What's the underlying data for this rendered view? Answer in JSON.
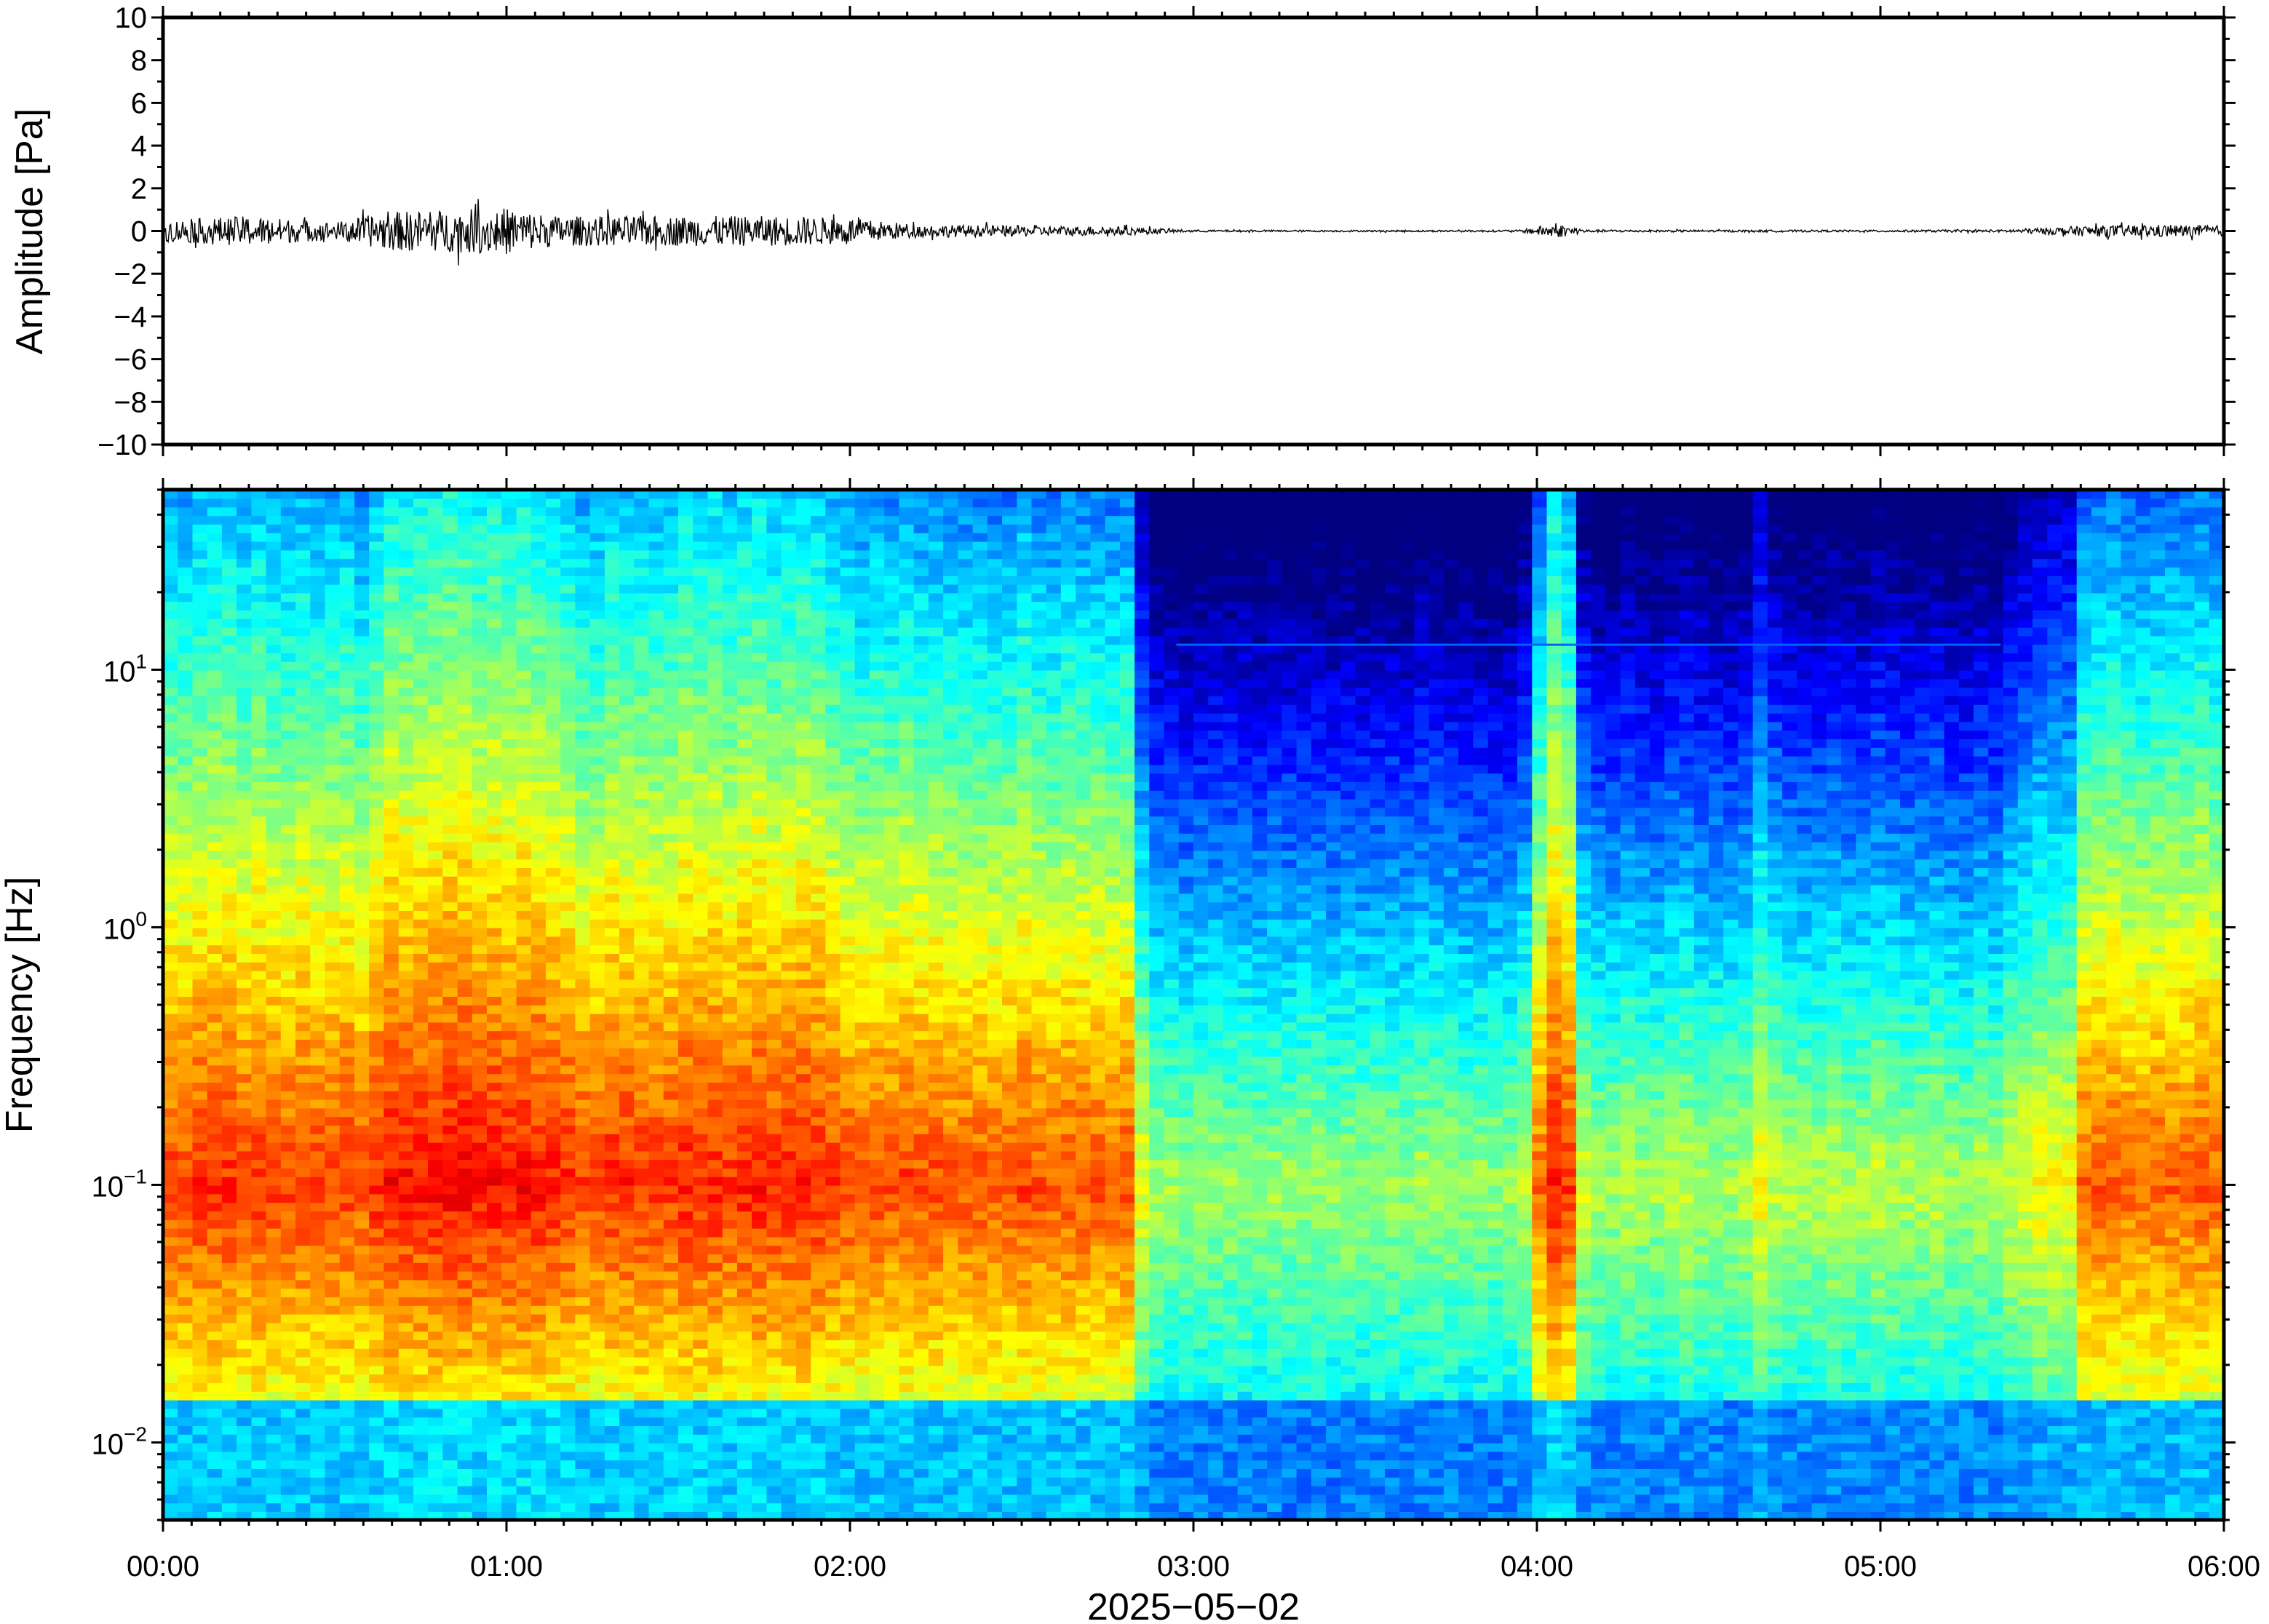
{
  "chart_data": [
    {
      "type": "line",
      "ylabel": "Amplitude [Pa]",
      "ylim": [
        -10,
        10
      ],
      "yticks": [
        10,
        8,
        6,
        4,
        2,
        0,
        -2,
        -4,
        -6,
        -8,
        -10
      ],
      "ytick_labels": [
        "10",
        "8",
        "6",
        "4",
        "2",
        "0",
        "−2",
        "−4",
        "−6",
        "−8",
        "−10"
      ],
      "x_range_hours": [
        0,
        6
      ],
      "grid": false,
      "line_color": "#000000",
      "envelope_hours": [
        0.0,
        0.25,
        0.5,
        0.65,
        0.85,
        1.0,
        1.15,
        1.5,
        1.85,
        2.0,
        2.2,
        2.5,
        2.8,
        3.0,
        3.5,
        3.95,
        4.05,
        4.15,
        4.5,
        5.0,
        5.35,
        5.6,
        5.8,
        6.0
      ],
      "envelope_amplitude": [
        0.5,
        0.7,
        0.4,
        0.9,
        1.0,
        1.1,
        0.7,
        0.7,
        0.7,
        0.6,
        0.3,
        0.25,
        0.2,
        0.05,
        0.04,
        0.05,
        0.35,
        0.06,
        0.05,
        0.05,
        0.06,
        0.25,
        0.3,
        0.25
      ]
    },
    {
      "type": "heatmap",
      "ylabel": "Frequency [Hz]",
      "xlabel": "2025−05−02",
      "y_scale": "log",
      "ylim": [
        0.005,
        50
      ],
      "yticks": [
        0.01,
        0.1,
        1,
        10
      ],
      "ytick_labels": [
        {
          "base": "10",
          "exp": "−2"
        },
        {
          "base": "10",
          "exp": "−1"
        },
        {
          "base": "10",
          "exp": "0"
        },
        {
          "base": "10",
          "exp": "1"
        }
      ],
      "x_range_hours": [
        0,
        6
      ],
      "xtick_labels": [
        "00:00",
        "01:00",
        "02:00",
        "03:00",
        "04:00",
        "05:00",
        "06:00"
      ],
      "colormap": "jet",
      "activity_profile_hours": [
        0.0,
        0.1,
        0.6,
        0.65,
        1.1,
        1.15,
        1.9,
        2.0,
        2.8,
        2.9,
        3.95,
        4.05,
        4.1,
        4.15,
        4.6,
        4.65,
        4.7,
        5.35,
        5.4,
        5.6,
        6.0
      ],
      "activity_profile_level": [
        0.75,
        0.8,
        0.75,
        0.9,
        0.9,
        0.8,
        0.85,
        0.75,
        0.7,
        0.3,
        0.3,
        0.85,
        0.8,
        0.35,
        0.35,
        0.55,
        0.4,
        0.35,
        0.55,
        0.65,
        0.7
      ],
      "steady_line_hz": 12.5
    }
  ]
}
